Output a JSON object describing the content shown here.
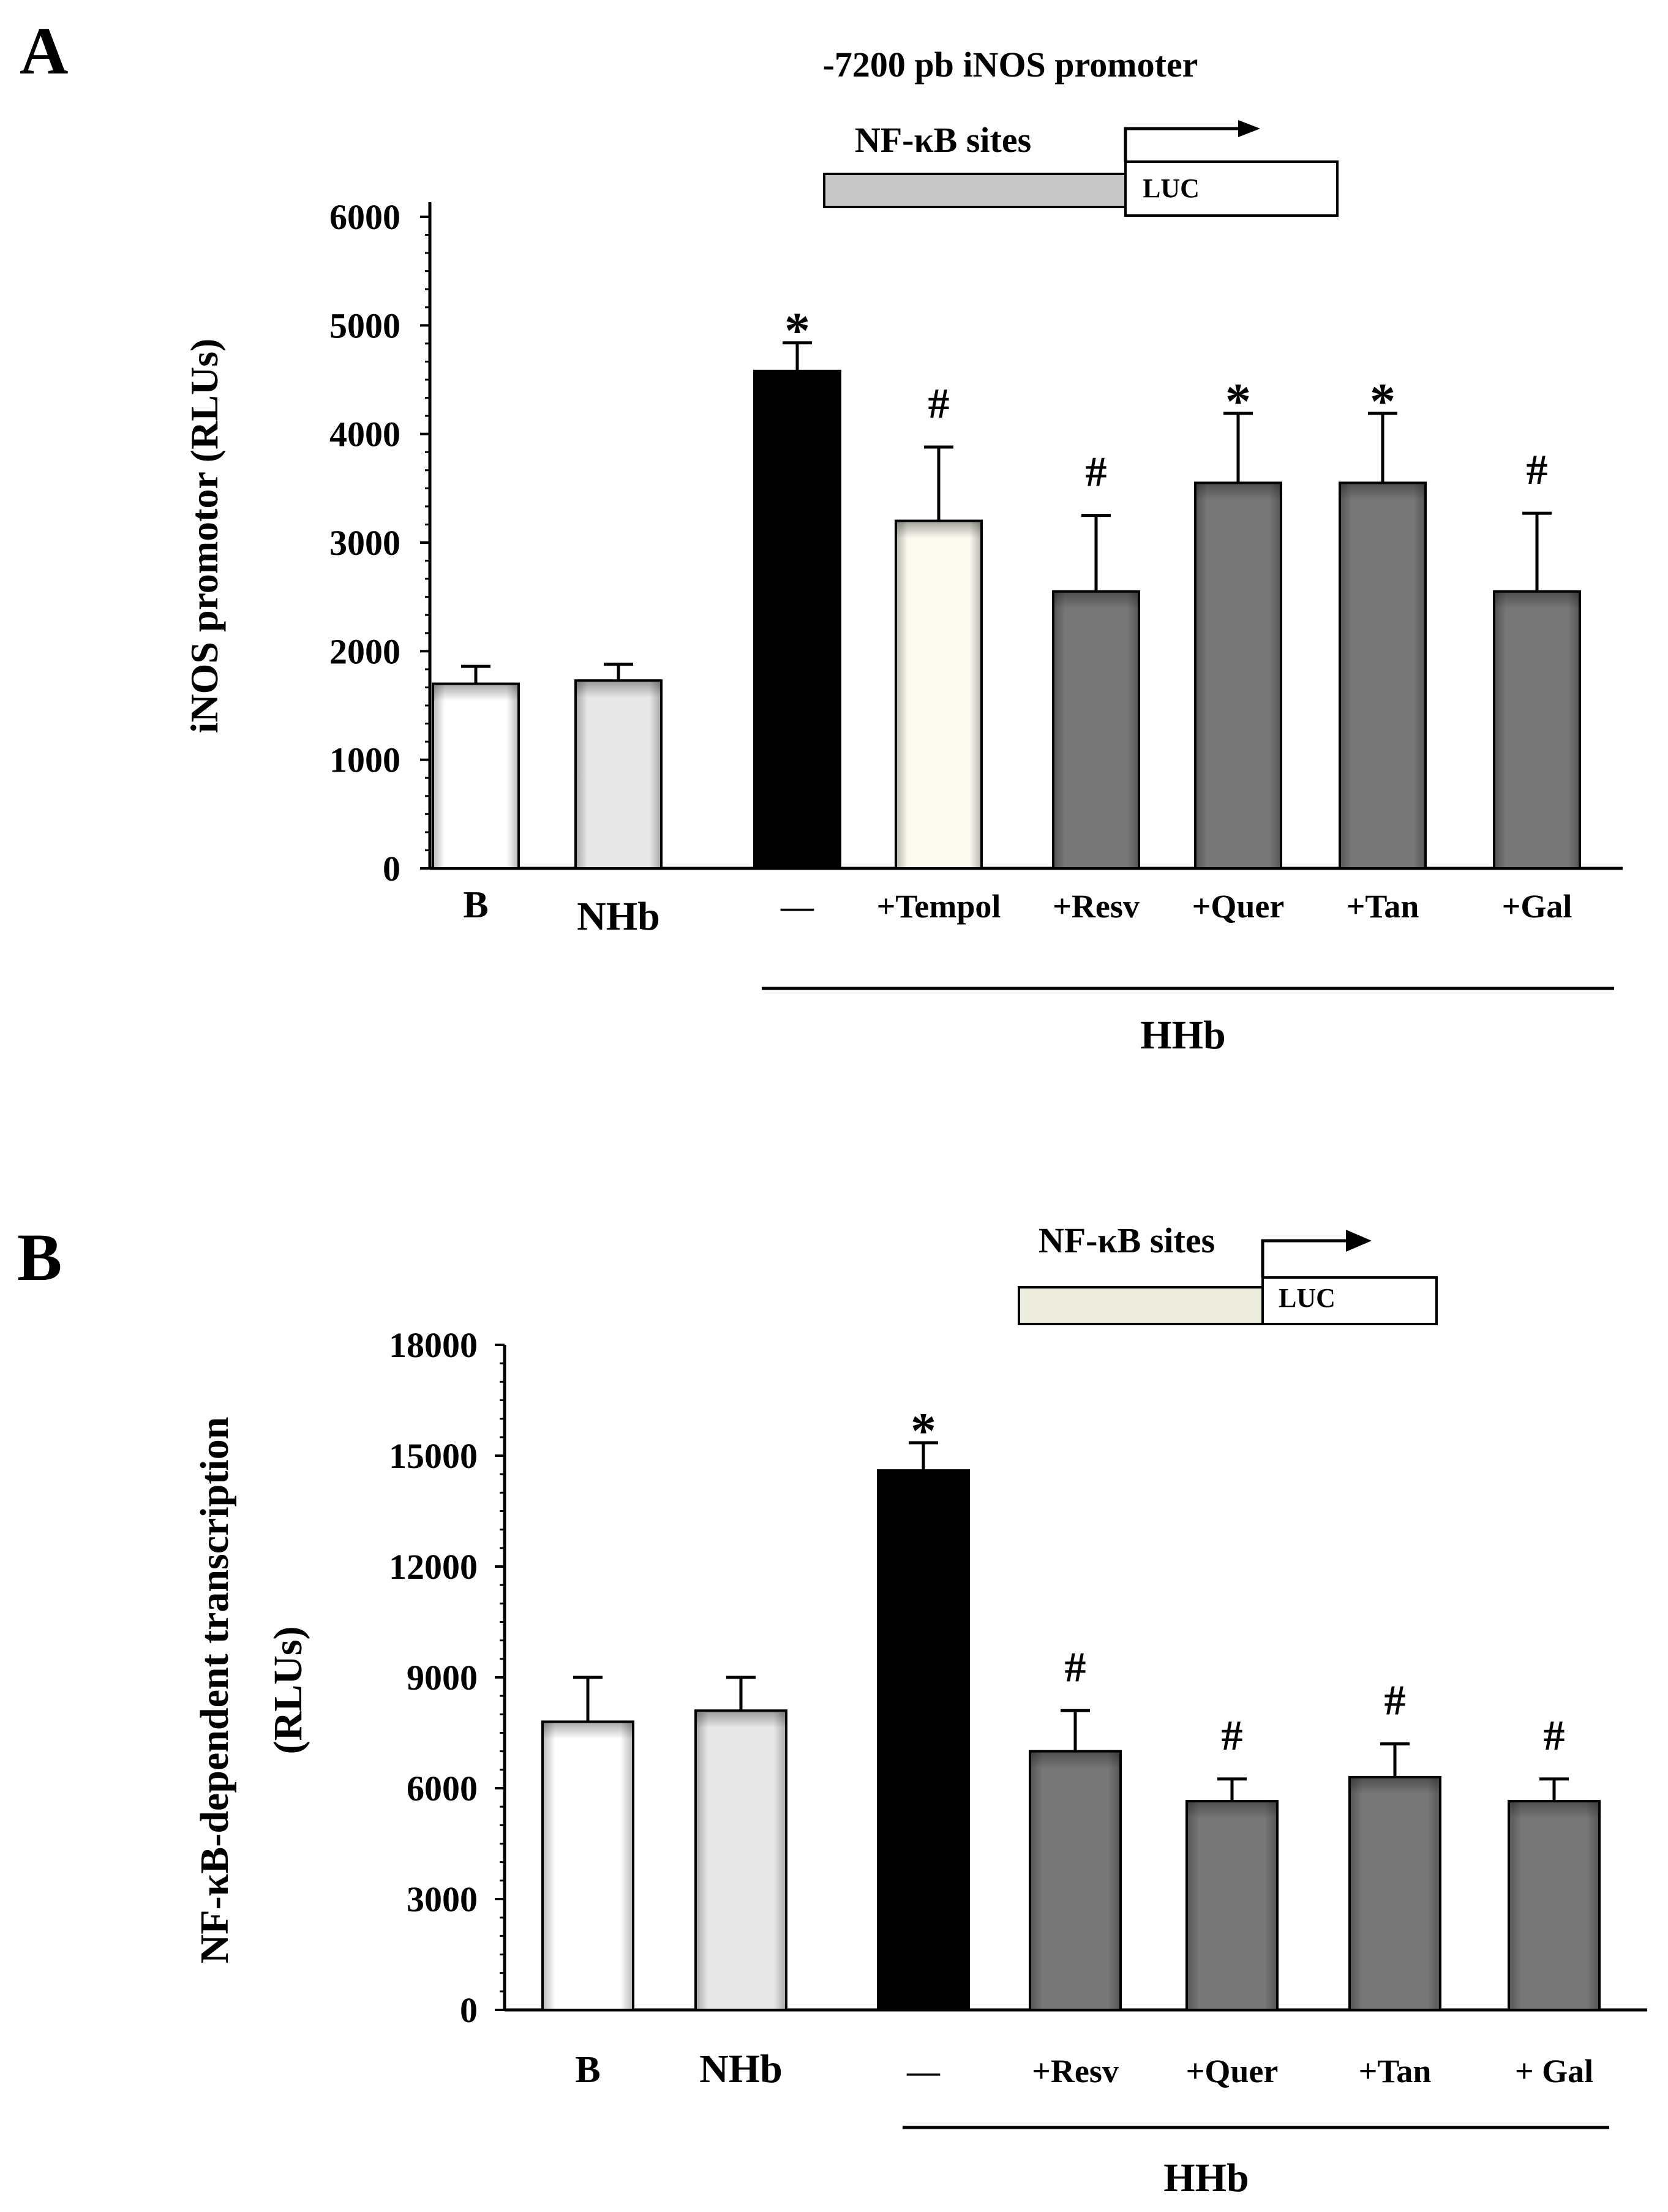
{
  "panels": [
    {
      "label": "A",
      "construct": {
        "title": "-7200 pb iNOS promoter",
        "sites_label": "NF-κB sites",
        "reporter_label": "LUC"
      },
      "group_label": "HHb",
      "colors": {
        "fills": [
          "#ffffff",
          "#e8e8e8",
          "#000000",
          "#fbfaf0",
          "#777777",
          "#777777",
          "#777777",
          "#777777"
        ]
      }
    },
    {
      "label": "B",
      "construct": {
        "title": "",
        "sites_label": "NF-κB sites",
        "reporter_label": "LUC"
      },
      "group_label": "HHb",
      "colors": {
        "fills": [
          "#ffffff",
          "#e8e8e8",
          "#000000",
          "#777777",
          "#777777",
          "#777777",
          "#777777"
        ]
      }
    }
  ],
  "chart_data": [
    {
      "type": "bar",
      "title": "",
      "xlabel": "",
      "ylabel": "iNOS promotor (RLUs)",
      "ylim": [
        0,
        6000
      ],
      "yticks": [
        "0",
        "1000",
        "2000",
        "3000",
        "4000",
        "5000",
        "6000"
      ],
      "categories": [
        "B",
        "NHb",
        "—",
        "+Tempol",
        "+Resv",
        "+Quer",
        "+Tan",
        "+Gal"
      ],
      "values": [
        1700,
        1730,
        4580,
        3200,
        2550,
        3550,
        3550,
        2550
      ],
      "errors": [
        160,
        150,
        260,
        680,
        700,
        640,
        640,
        720
      ],
      "annotations": [
        "",
        "",
        "*",
        "#",
        "#",
        "*",
        "*",
        "#"
      ]
    },
    {
      "type": "bar",
      "title": "",
      "xlabel": "",
      "ylabel": "NF-κB-dependent transcription (RLUs)",
      "ylabel_lines": [
        "NF-κB-dependent transcription",
        "(RLUs)"
      ],
      "ylim": [
        0,
        18000
      ],
      "yticks": [
        "0",
        "3000",
        "6000",
        "9000",
        "12000",
        "15000",
        "18000"
      ],
      "categories": [
        "B",
        "NHb",
        "—",
        "+Resv",
        "+Quer",
        "+Tan",
        "+ Gal"
      ],
      "values": [
        7800,
        8100,
        14600,
        7000,
        5650,
        6300,
        5650
      ],
      "errors": [
        1200,
        900,
        750,
        1100,
        600,
        900,
        600
      ],
      "annotations": [
        "",
        "",
        "*",
        "#",
        "#",
        "#",
        "#"
      ]
    }
  ]
}
